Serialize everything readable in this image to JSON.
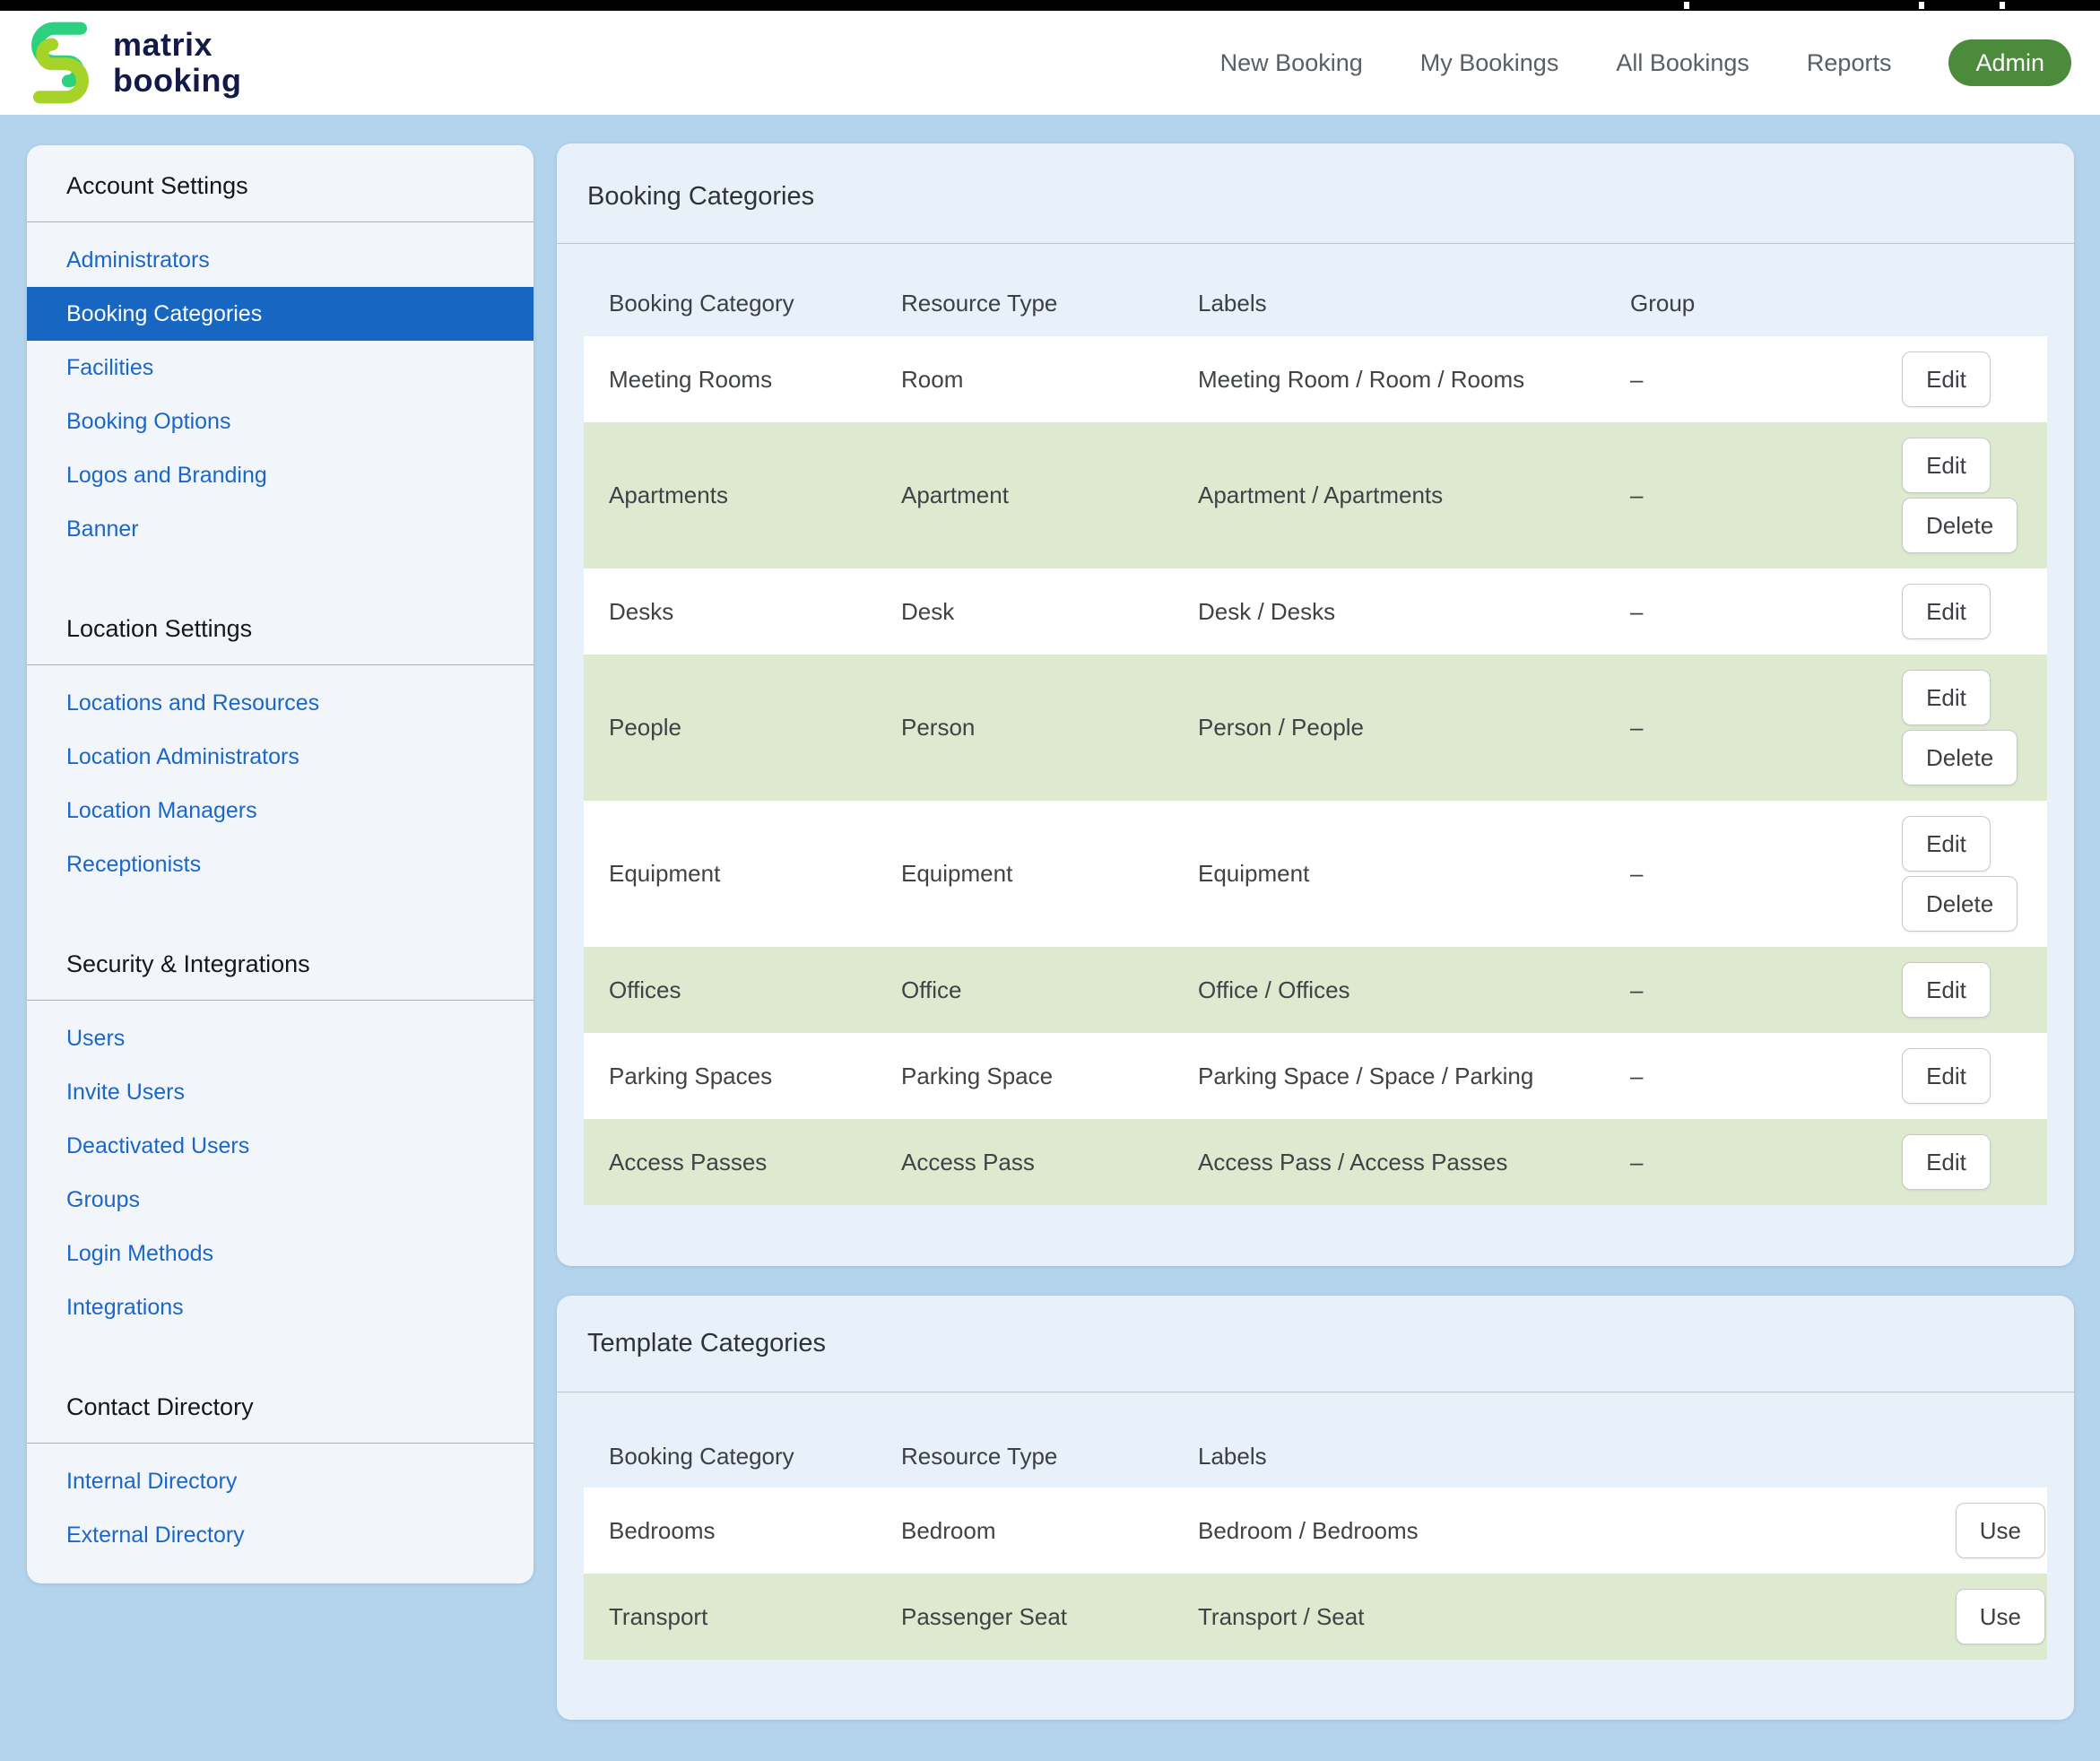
{
  "colors": {
    "page_bg": "#b3d4ec",
    "card_bg": "#e8f0f9",
    "sidebar_bg": "#f2f6fa",
    "row_green": "#deead0",
    "selected_blue": "#1767c2",
    "link_blue": "#1b67c9",
    "admin_green": "#4c8a3c",
    "logo_green_top": "#2bd17e",
    "logo_green_bottom": "#a5d327",
    "logo_text_navy": "#131a4a"
  },
  "navbar": {
    "logo": {
      "line1": "matrix",
      "line2": "booking"
    },
    "items": [
      {
        "label": "New Booking"
      },
      {
        "label": "My Bookings"
      },
      {
        "label": "All Bookings"
      },
      {
        "label": "Reports"
      }
    ],
    "admin_label": "Admin"
  },
  "sidebar": {
    "sections": [
      {
        "heading": "Account Settings",
        "items": [
          {
            "label": "Administrators",
            "selected": false
          },
          {
            "label": "Booking Categories",
            "selected": true
          },
          {
            "label": "Facilities",
            "selected": false
          },
          {
            "label": "Booking Options",
            "selected": false
          },
          {
            "label": "Logos and Branding",
            "selected": false
          },
          {
            "label": "Banner",
            "selected": false
          }
        ]
      },
      {
        "heading": "Location Settings",
        "items": [
          {
            "label": "Locations and Resources",
            "selected": false
          },
          {
            "label": "Location Administrators",
            "selected": false
          },
          {
            "label": "Location Managers",
            "selected": false
          },
          {
            "label": "Receptionists",
            "selected": false
          }
        ]
      },
      {
        "heading": "Security & Integrations",
        "items": [
          {
            "label": "Users",
            "selected": false
          },
          {
            "label": "Invite Users",
            "selected": false
          },
          {
            "label": "Deactivated Users",
            "selected": false
          },
          {
            "label": "Groups",
            "selected": false
          },
          {
            "label": "Login Methods",
            "selected": false
          },
          {
            "label": "Integrations",
            "selected": false
          }
        ]
      },
      {
        "heading": "Contact Directory",
        "items": [
          {
            "label": "Internal Directory",
            "selected": false
          },
          {
            "label": "External Directory",
            "selected": false
          }
        ]
      }
    ]
  },
  "booking_categories": {
    "title": "Booking Categories",
    "columns": [
      "Booking Category",
      "Resource Type",
      "Labels",
      "Group"
    ],
    "rows": [
      {
        "category": "Meeting Rooms",
        "resource_type": "Room",
        "labels": "Meeting Room / Room / Rooms",
        "group": "–",
        "buttons": [
          "Edit"
        ]
      },
      {
        "category": "Apartments",
        "resource_type": "Apartment",
        "labels": "Apartment / Apartments",
        "group": "–",
        "buttons": [
          "Edit",
          "Delete"
        ]
      },
      {
        "category": "Desks",
        "resource_type": "Desk",
        "labels": "Desk / Desks",
        "group": "–",
        "buttons": [
          "Edit"
        ]
      },
      {
        "category": "People",
        "resource_type": "Person",
        "labels": "Person / People",
        "group": "–",
        "buttons": [
          "Edit",
          "Delete"
        ]
      },
      {
        "category": "Equipment",
        "resource_type": "Equipment",
        "labels": "Equipment",
        "group": "–",
        "buttons": [
          "Edit",
          "Delete"
        ]
      },
      {
        "category": "Offices",
        "resource_type": "Office",
        "labels": "Office / Offices",
        "group": "–",
        "buttons": [
          "Edit"
        ]
      },
      {
        "category": "Parking Spaces",
        "resource_type": "Parking Space",
        "labels": "Parking Space / Space / Parking",
        "group": "–",
        "buttons": [
          "Edit"
        ]
      },
      {
        "category": "Access Passes",
        "resource_type": "Access Pass",
        "labels": "Access Pass / Access Passes",
        "group": "–",
        "buttons": [
          "Edit"
        ]
      }
    ]
  },
  "template_categories": {
    "title": "Template Categories",
    "columns": [
      "Booking Category",
      "Resource Type",
      "Labels"
    ],
    "rows": [
      {
        "category": "Bedrooms",
        "resource_type": "Bedroom",
        "labels": "Bedroom / Bedrooms",
        "group": "",
        "buttons": [
          "Use"
        ]
      },
      {
        "category": "Transport",
        "resource_type": "Passenger Seat",
        "labels": "Transport / Seat",
        "group": "",
        "buttons": [
          "Use"
        ]
      }
    ]
  }
}
